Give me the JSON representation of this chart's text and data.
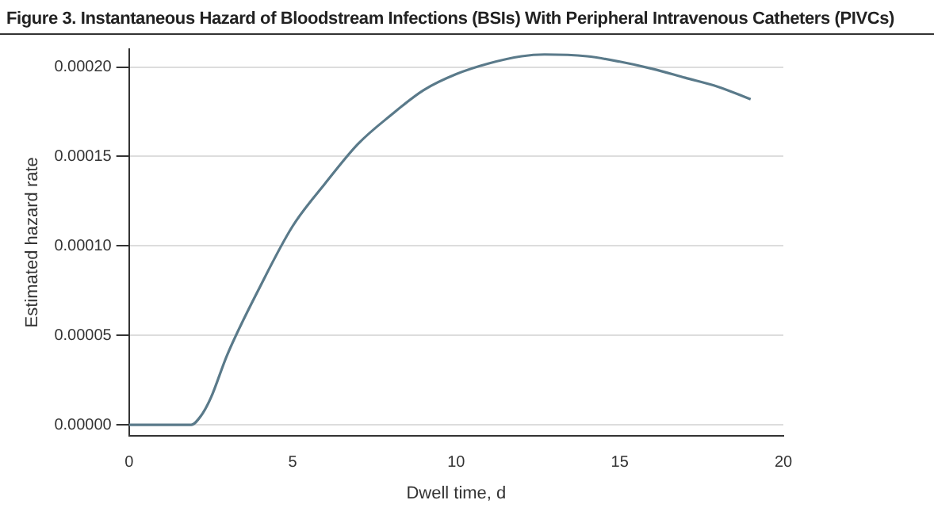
{
  "chart_data": {
    "type": "line",
    "title": "Figure 3. Instantaneous Hazard of Bloodstream Infections (BSIs) With Peripheral Intravenous Catheters (PIVCs)",
    "xlabel": "Dwell time, d",
    "ylabel": "Estimated hazard rate",
    "x": [
      0,
      1.9,
      2.2,
      2.5,
      3,
      4,
      5,
      6,
      7,
      8,
      9,
      10,
      11,
      12,
      12.7,
      14,
      15,
      16,
      17,
      18,
      19
    ],
    "series": [
      {
        "color": "#5a7a8a",
        "values": [
          0,
          0,
          5e-06,
          1.5e-05,
          3.9e-05,
          7.7e-05,
          0.000111,
          0.000135,
          0.000157,
          0.000173,
          0.000187,
          0.000196,
          0.000202,
          0.000206,
          0.000207,
          0.000206,
          0.000203,
          0.000199,
          0.000194,
          0.000189,
          0.000182
        ]
      }
    ],
    "xlim": [
      0,
      20
    ],
    "xticks": [
      0,
      5,
      10,
      15,
      20
    ],
    "ylim": [
      -6e-06,
      0.00021
    ],
    "yticks": [
      {
        "value": 0,
        "label": "0.00000"
      },
      {
        "value": 5e-05,
        "label": "0.00005"
      },
      {
        "value": 0.0001,
        "label": "0.00010"
      },
      {
        "value": 0.00015,
        "label": "0.00015"
      },
      {
        "value": 0.0002,
        "label": "0.00020"
      }
    ],
    "grid": "y",
    "legend": false,
    "marker": "none",
    "line_style": "solid"
  }
}
